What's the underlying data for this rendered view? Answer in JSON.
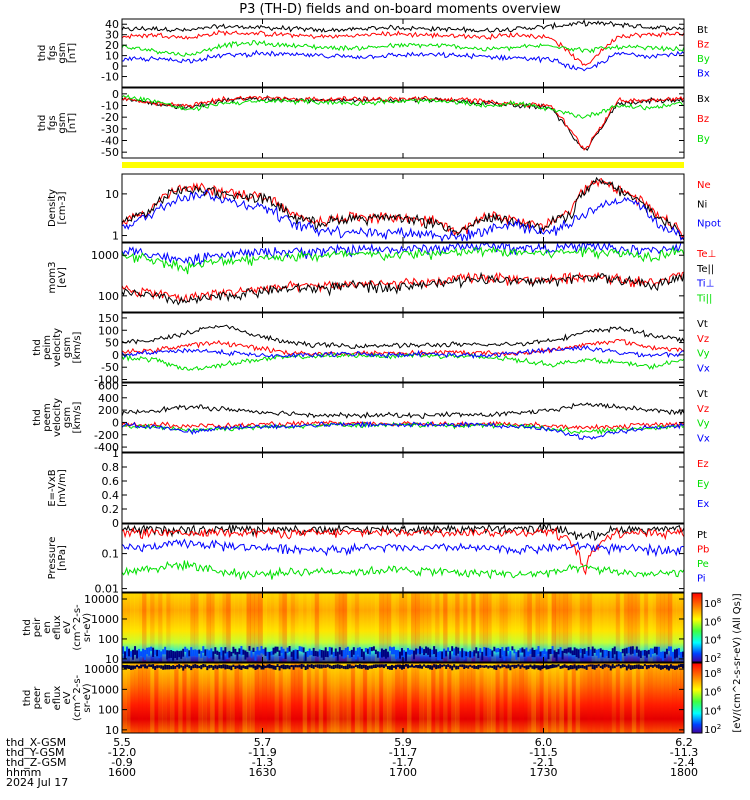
{
  "title": "P3 (TH-D) fields and on-board moments overview",
  "colors": {
    "black": "#000000",
    "red": "#ff0000",
    "green": "#00e000",
    "blue": "#0000ff",
    "yellow": "#ffff00"
  },
  "chart_data": [
    {
      "type": "line",
      "panel": "fgs_gsm",
      "ylabel": [
        "thd",
        "fgs",
        "gsm",
        "[nT]"
      ],
      "ylim": [
        -20,
        45
      ],
      "yticks": [
        40,
        30,
        20,
        10,
        0,
        -10
      ],
      "series": [
        {
          "name": "Bt",
          "color": "black",
          "values": [
            35,
            36,
            34,
            38,
            37,
            36,
            34,
            35,
            37,
            36,
            35,
            34,
            36,
            38,
            41,
            40,
            37,
            36
          ]
        },
        {
          "name": "Bz",
          "color": "red",
          "values": [
            28,
            30,
            27,
            32,
            31,
            30,
            28,
            29,
            31,
            30,
            29,
            28,
            30,
            27,
            0,
            29,
            30,
            31
          ]
        },
        {
          "name": "By",
          "color": "green",
          "values": [
            18,
            15,
            10,
            20,
            22,
            20,
            18,
            17,
            19,
            20,
            19,
            16,
            18,
            20,
            15,
            18,
            17,
            16
          ]
        },
        {
          "name": "Bx",
          "color": "blue",
          "values": [
            6,
            7,
            5,
            10,
            12,
            11,
            10,
            9,
            10,
            11,
            10,
            9,
            8,
            6,
            -5,
            12,
            10,
            12
          ]
        }
      ]
    },
    {
      "type": "line",
      "panel": "fgs_gsm_dsl",
      "ylabel": [
        "thd",
        "fgs",
        "gsm",
        "[nT]"
      ],
      "ylim": [
        -55,
        5
      ],
      "yticks": [
        0,
        -10,
        -20,
        -30,
        -40,
        -50
      ],
      "series": [
        {
          "name": "Bx",
          "color": "black",
          "values": [
            -5,
            -8,
            -12,
            -6,
            -4,
            -5,
            -6,
            -5,
            -6,
            -5,
            -6,
            -8,
            -10,
            -12,
            -50,
            -8,
            -6,
            -5
          ]
        },
        {
          "name": "Bz",
          "color": "red",
          "values": [
            -4,
            -9,
            -10,
            -5,
            -3,
            -4,
            -5,
            -4,
            -5,
            -4,
            -5,
            -6,
            -9,
            -10,
            -48,
            -6,
            -5,
            -4
          ]
        },
        {
          "name": "By",
          "color": "green",
          "values": [
            -2,
            -6,
            -14,
            -8,
            -7,
            -6,
            -7,
            -8,
            -7,
            -6,
            -7,
            -10,
            -8,
            -14,
            -20,
            -10,
            -12,
            -8
          ]
        }
      ]
    },
    {
      "type": "line",
      "panel": "density",
      "ylog": true,
      "ylabel": [
        "Density",
        "[cm-3]"
      ],
      "ylim": [
        0.7,
        30
      ],
      "yticks": [
        10,
        1
      ],
      "series": [
        {
          "name": "Ne",
          "color": "red",
          "values": [
            2,
            4,
            13,
            14,
            10,
            9,
            3,
            2.2,
            2.8,
            3,
            2.6,
            2.4,
            1.1,
            3,
            2.5,
            1.5,
            4,
            22,
            10,
            3,
            1
          ]
        },
        {
          "name": "Ni",
          "color": "black",
          "values": [
            2,
            3.8,
            12,
            13,
            9,
            8,
            3,
            2,
            2.6,
            2.8,
            2.4,
            2.2,
            1,
            2.8,
            2.4,
            1.4,
            3.6,
            20,
            9,
            2.8,
            0.9
          ]
        },
        {
          "name": "Npot",
          "color": "blue",
          "values": [
            1.5,
            3,
            8,
            10,
            6,
            5,
            2,
            1.4,
            1.3,
            1.2,
            1.2,
            1.1,
            0.9,
            1.4,
            2,
            1.1,
            2,
            5,
            8,
            2,
            0.8
          ]
        }
      ]
    },
    {
      "type": "line",
      "panel": "temperature",
      "ylog": true,
      "ylabel": [
        "mom3",
        "[eV]"
      ],
      "ylim": [
        40,
        2000
      ],
      "yticks": [
        1000,
        100
      ],
      "series": [
        {
          "name": "Te⊥",
          "color": "red",
          "values": [
            150,
            120,
            90,
            110,
            130,
            160,
            170,
            180,
            200,
            190,
            210,
            230,
            300,
            260,
            240,
            280,
            320,
            250,
            200,
            330
          ]
        },
        {
          "name": "Te||",
          "color": "black",
          "values": [
            130,
            100,
            70,
            90,
            110,
            140,
            150,
            160,
            180,
            170,
            190,
            210,
            280,
            240,
            220,
            260,
            300,
            230,
            180,
            300
          ]
        },
        {
          "name": "Ti⊥",
          "color": "blue",
          "values": [
            1300,
            1100,
            700,
            900,
            1100,
            1200,
            1250,
            1300,
            1400,
            1350,
            1450,
            1500,
            1700,
            1600,
            1500,
            1550,
            1700,
            1400,
            1300,
            1800
          ]
        },
        {
          "name": "Ti||",
          "color": "green",
          "values": [
            1000,
            800,
            500,
            650,
            800,
            900,
            950,
            1000,
            1050,
            1000,
            1100,
            1100,
            1300,
            1200,
            1150,
            1200,
            1300,
            1100,
            1000,
            1400
          ]
        }
      ]
    },
    {
      "type": "line",
      "panel": "peim_velocity",
      "ylabel": [
        "thd",
        "peim",
        "velocity",
        "gsm",
        "[km/s]"
      ],
      "ylim": [
        -110,
        170
      ],
      "yticks": [
        150,
        100,
        50,
        0,
        -50,
        -100
      ],
      "series": [
        {
          "name": "Vt",
          "color": "black",
          "values": [
            50,
            60,
            90,
            120,
            80,
            50,
            40,
            35,
            40,
            38,
            42,
            40,
            45,
            60,
            90,
            110,
            80,
            60
          ]
        },
        {
          "name": "Vz",
          "color": "red",
          "values": [
            10,
            20,
            40,
            50,
            30,
            10,
            5,
            5,
            8,
            6,
            10,
            8,
            5,
            20,
            40,
            60,
            30,
            20
          ]
        },
        {
          "name": "Vy",
          "color": "green",
          "values": [
            -10,
            -20,
            -60,
            -40,
            -20,
            -10,
            -5,
            0,
            -5,
            0,
            -5,
            -10,
            -20,
            -40,
            -20,
            -30,
            -50,
            -20
          ]
        },
        {
          "name": "Vx",
          "color": "blue",
          "values": [
            0,
            10,
            20,
            10,
            0,
            -5,
            0,
            5,
            0,
            5,
            0,
            -5,
            10,
            20,
            30,
            10,
            0,
            5
          ]
        }
      ]
    },
    {
      "type": "line",
      "panel": "peem_velocity",
      "ylabel": [
        "thd",
        "peem",
        "velocity",
        "gsm",
        "[km/s]"
      ],
      "ylim": [
        -480,
        640
      ],
      "yticks": [
        600,
        400,
        200,
        0,
        -200,
        -400
      ],
      "series": [
        {
          "name": "Vt",
          "color": "black",
          "values": [
            150,
            200,
            250,
            220,
            180,
            150,
            120,
            110,
            120,
            110,
            130,
            120,
            150,
            200,
            300,
            250,
            200,
            150
          ]
        },
        {
          "name": "Vz",
          "color": "red",
          "values": [
            -30,
            -40,
            -50,
            -60,
            -40,
            -30,
            -20,
            -20,
            -25,
            -20,
            -30,
            -25,
            -30,
            -60,
            -80,
            -60,
            -40,
            -30
          ]
        },
        {
          "name": "Vy",
          "color": "green",
          "values": [
            -60,
            -80,
            -120,
            -100,
            -80,
            -60,
            -40,
            -40,
            -50,
            -40,
            -50,
            -45,
            -60,
            -100,
            -160,
            -120,
            -80,
            -60
          ]
        },
        {
          "name": "Vx",
          "color": "blue",
          "values": [
            -50,
            -70,
            -150,
            -100,
            -70,
            -60,
            -40,
            -40,
            -40,
            -35,
            -40,
            -40,
            -60,
            -120,
            -250,
            -150,
            -80,
            -60
          ]
        }
      ]
    },
    {
      "type": "line",
      "panel": "efield",
      "ylabel": [
        "E=-VxB",
        "[mV/m]"
      ],
      "ylim": [
        0,
        1.0
      ],
      "yticks": [
        1.0,
        0.8,
        0.6,
        0.4,
        0.2,
        0.0
      ],
      "series": [
        {
          "name": "Ez",
          "color": "red",
          "values": []
        },
        {
          "name": "Ey",
          "color": "green",
          "values": []
        },
        {
          "name": "Ex",
          "color": "blue",
          "values": []
        }
      ]
    },
    {
      "type": "line",
      "panel": "pressure",
      "ylog": true,
      "ylabel": [
        "Pressure",
        "[nPa]"
      ],
      "ylim": [
        0.008,
        0.7
      ],
      "yticks": [
        0.1,
        0.01
      ],
      "series": [
        {
          "name": "Pt",
          "color": "black",
          "values": [
            0.48,
            0.5,
            0.5,
            0.52,
            0.5,
            0.5,
            0.48,
            0.5,
            0.5,
            0.5,
            0.52,
            0.5,
            0.5,
            0.55,
            0.3,
            0.5,
            0.5,
            0.48
          ]
        },
        {
          "name": "Pb",
          "color": "red",
          "values": [
            0.38,
            0.42,
            0.36,
            0.44,
            0.42,
            0.4,
            0.38,
            0.4,
            0.42,
            0.4,
            0.42,
            0.4,
            0.4,
            0.45,
            0.02,
            0.42,
            0.4,
            0.4
          ]
        },
        {
          "name": "Pe",
          "color": "green",
          "values": [
            0.03,
            0.04,
            0.05,
            0.03,
            0.025,
            0.03,
            0.032,
            0.03,
            0.035,
            0.033,
            0.03,
            0.028,
            0.025,
            0.03,
            0.04,
            0.03,
            0.025,
            0.03
          ]
        },
        {
          "name": "Pi",
          "color": "blue",
          "values": [
            0.14,
            0.16,
            0.2,
            0.17,
            0.15,
            0.14,
            0.13,
            0.14,
            0.15,
            0.14,
            0.15,
            0.14,
            0.13,
            0.15,
            0.16,
            0.14,
            0.13,
            0.14
          ]
        }
      ]
    },
    {
      "type": "heatmap",
      "panel": "peir_spec",
      "ylog": true,
      "ylabel": [
        "thd",
        "peir",
        "en",
        "eflux",
        "eV",
        "(cm^2-s-",
        "sr-eV)"
      ],
      "ylim": [
        7,
        20000
      ],
      "yticks": [
        10000,
        1000,
        100,
        10
      ],
      "zlabel": "[eV/(cm^2-s-sr-eV) (All Qs)]",
      "zlog": true,
      "zticks": [
        "10^8",
        "10^6",
        "10^4",
        "10^2"
      ]
    },
    {
      "type": "heatmap",
      "panel": "peer_spec",
      "ylog": true,
      "ylabel": [
        "thd",
        "peer",
        "en",
        "eflux",
        "eV",
        "(cm^2-s-",
        "sr-eV)"
      ],
      "ylim": [
        7,
        20000
      ],
      "yticks": [
        10000,
        1000,
        100,
        10
      ],
      "zlog": true,
      "zticks": [
        "10^8",
        "10^6",
        "10^4",
        "10^2"
      ]
    }
  ],
  "xaxis": {
    "labels": [
      "thd_X-GSM",
      "thd_Y-GSM",
      "thd_Z-GSM",
      "hhmm",
      "2024 Jul 17"
    ],
    "columns": [
      [
        "5.5",
        "-12.0",
        "-0.9",
        "1600"
      ],
      [
        "5.7",
        "-11.9",
        "-1.3",
        "1630"
      ],
      [
        "5.9",
        "-11.7",
        "-1.7",
        "1700"
      ],
      [
        "6.0",
        "-11.5",
        "-2.1",
        "1730"
      ],
      [
        "6.2",
        "-11.3",
        "-2.4",
        "1800"
      ]
    ]
  }
}
